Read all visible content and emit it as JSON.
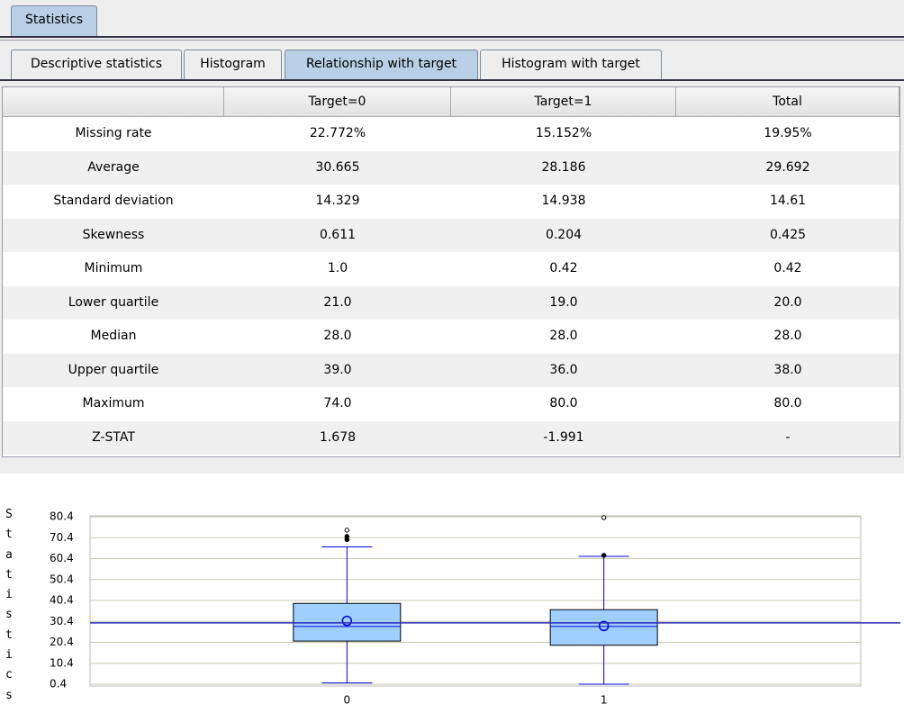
{
  "tabs": {
    "outer": [
      "Statistics"
    ],
    "inner": [
      "Descriptive statistics",
      "Histogram",
      "Relationship with target",
      "Histogram with target"
    ],
    "inner_selected": 2
  },
  "table": {
    "columns": [
      "Target=0",
      "Target=1",
      "Total"
    ],
    "rows": [
      [
        "Missing rate",
        "22.772%",
        "15.152%",
        "19.95%"
      ],
      [
        "Average",
        "30.665",
        "28.186",
        "29.692"
      ],
      [
        "Standard deviation",
        "14.329",
        "14.938",
        "14.61"
      ],
      [
        "Skewness",
        "0.611",
        "0.204",
        "0.425"
      ],
      [
        "Minimum",
        "1.0",
        "0.42",
        "0.42"
      ],
      [
        "Lower quartile",
        "21.0",
        "19.0",
        "20.0"
      ],
      [
        "Median",
        "28.0",
        "28.0",
        "28.0"
      ],
      [
        "Upper quartile",
        "39.0",
        "36.0",
        "38.0"
      ],
      [
        "Maximum",
        "74.0",
        "80.0",
        "80.0"
      ],
      [
        "Z-STAT",
        "1.678",
        "-1.991",
        "-"
      ]
    ]
  },
  "chart_data": {
    "type": "box",
    "y_label": "Statistics",
    "categories": [
      "0",
      "1"
    ],
    "ylim": [
      0.4,
      80.4
    ],
    "yticks": [
      0.4,
      10.4,
      20.4,
      30.4,
      40.4,
      50.4,
      60.4,
      70.4,
      80.4
    ],
    "grid": true,
    "box_color": "#9fcfff",
    "whisker_color": "#0000dd",
    "reference_line": 29.692,
    "reference_color": "#2a2ab8",
    "boxes": [
      {
        "whisker_low": 1.0,
        "q1": 21,
        "median": 28,
        "q3": 39,
        "whisker_high": 66,
        "mean": 30.665,
        "outliers": [
          69.5,
          71,
          74
        ]
      },
      {
        "whisker_low": 0.42,
        "q1": 19,
        "median": 28,
        "q3": 36,
        "whisker_high": 61.5,
        "mean": 28.186,
        "outliers": [
          62,
          80
        ]
      }
    ]
  }
}
